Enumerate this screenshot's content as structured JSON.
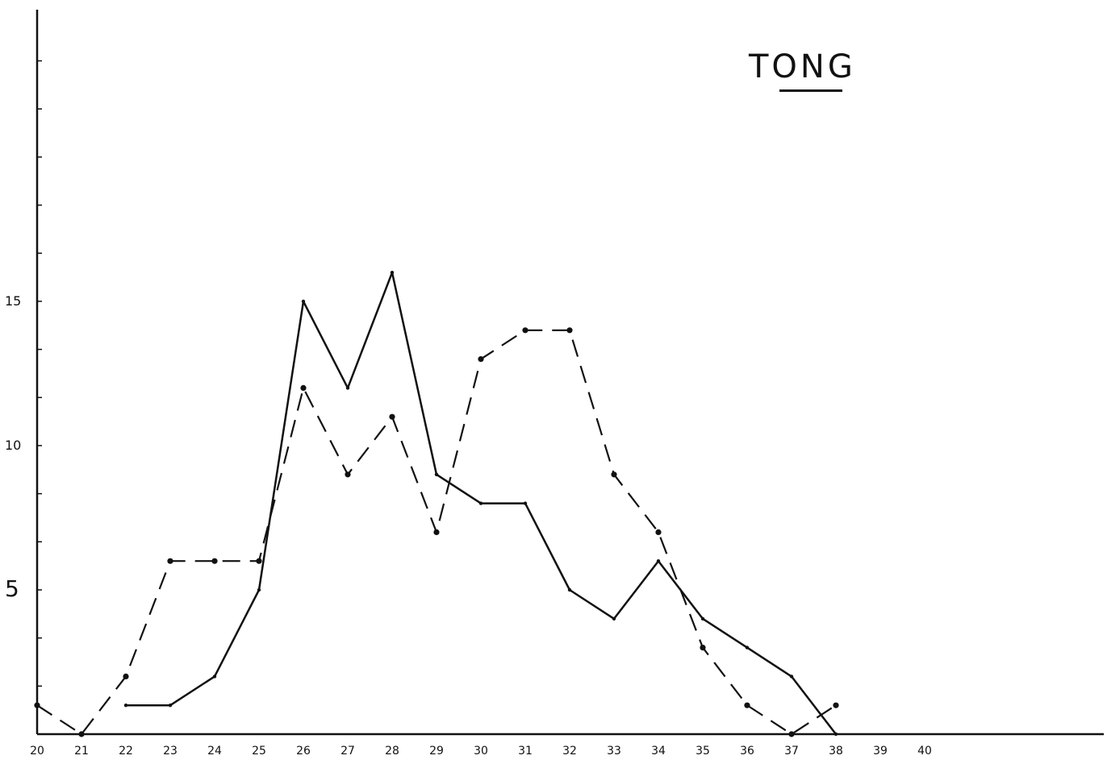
{
  "chart_data": {
    "type": "line",
    "title": "TONG",
    "x": [
      "20",
      "21",
      "22",
      "23",
      "24",
      "25",
      "26",
      "27",
      "28",
      "29",
      "30",
      "31",
      "32",
      "33",
      "34",
      "35",
      "36",
      "37",
      "38",
      "39",
      "40"
    ],
    "series": [
      {
        "style": "solid",
        "color": "#111111",
        "values": [
          null,
          null,
          1,
          1,
          2,
          5,
          15,
          12,
          16,
          9,
          8,
          8,
          5,
          4,
          6,
          4,
          3,
          2,
          0,
          null,
          null
        ]
      },
      {
        "style": "dashed",
        "color": "#111111",
        "values": [
          1,
          0,
          2,
          6,
          6,
          6,
          12,
          9,
          11,
          7,
          13,
          14,
          14,
          9,
          7,
          3,
          1,
          0,
          1,
          null,
          null
        ]
      }
    ],
    "ylim": [
      0,
      25
    ],
    "yticks": [
      {
        "value": 5,
        "label": "5"
      },
      {
        "value": 10,
        "label": "10"
      },
      {
        "value": 15,
        "label": "15"
      }
    ],
    "minor_ytick_step": 1.667,
    "grid": false,
    "xlabel": "",
    "ylabel": ""
  }
}
